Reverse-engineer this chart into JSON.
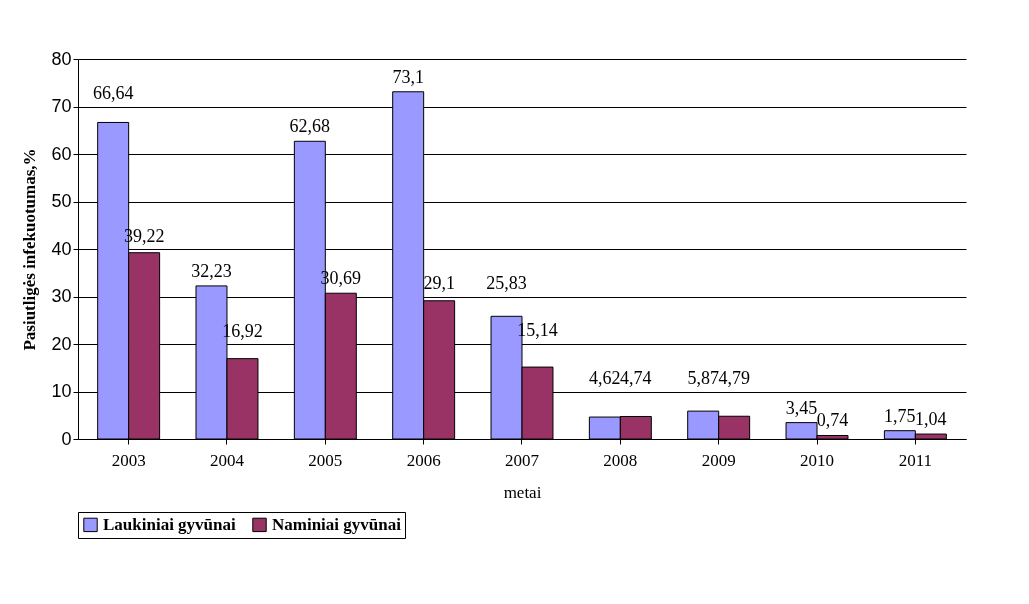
{
  "chart_data": {
    "type": "bar",
    "xlabel": "metai",
    "ylabel": "Pasiutligės infekuotumas,%",
    "categories": [
      "2003",
      "2004",
      "2005",
      "2006",
      "2007",
      "2008",
      "2009",
      "2010",
      "2011"
    ],
    "series": [
      {
        "name": "Laukiniai gyvūnai",
        "color": "#9999ff",
        "values": [
          66.64,
          32.23,
          62.68,
          73.1,
          25.83,
          4.62,
          5.87,
          3.45,
          1.75
        ],
        "value_labels": [
          "66,64",
          "32,23",
          "62,68",
          "73,1",
          "25,83",
          "4,62",
          "5,87",
          "3,45",
          "1,75"
        ]
      },
      {
        "name": "Naminiai gyvūnai",
        "color": "#993366",
        "values": [
          39.22,
          16.92,
          30.69,
          29.1,
          15.14,
          4.74,
          4.79,
          0.74,
          1.04
        ],
        "value_labels": [
          "39,22",
          "16,92",
          "30,69",
          "29,1",
          "15,14",
          "4,74",
          "4,79",
          "0,74",
          "1,04"
        ]
      }
    ],
    "ylim": [
      0,
      80
    ],
    "yticks": [
      0,
      10,
      20,
      30,
      40,
      50,
      60,
      70,
      80
    ],
    "grid": "y",
    "legend": "bottom"
  }
}
